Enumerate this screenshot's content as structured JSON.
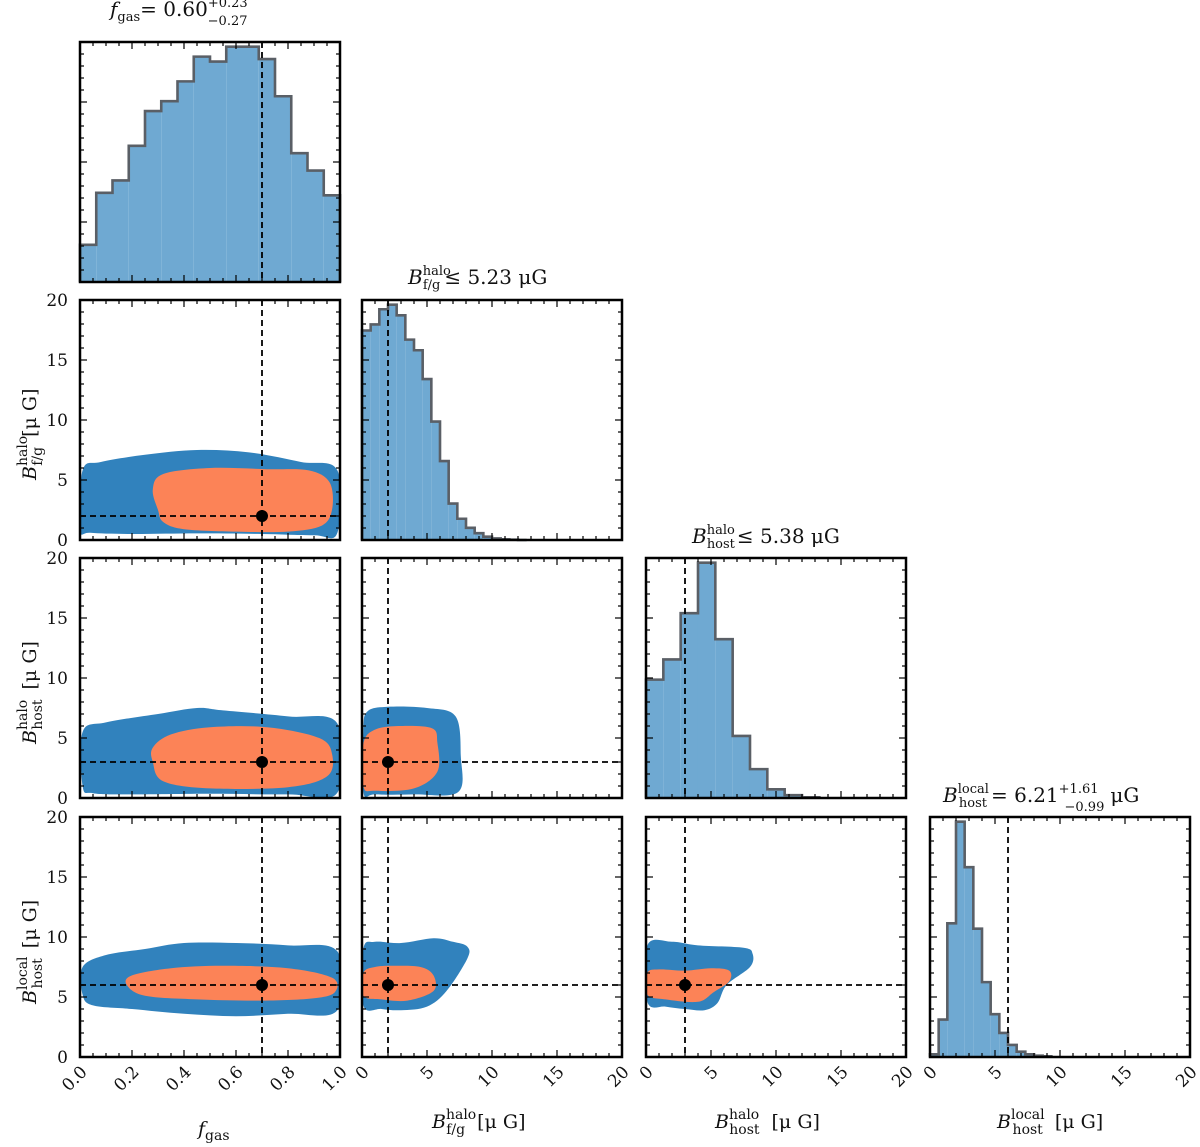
{
  "colors": {
    "hist_fill": "#6fa9d2",
    "hist_edge": "#5a5f66",
    "outer_contour": "#3182bd",
    "inner_contour": "#fc8357",
    "truth_marker": "#000000",
    "frame": "#000000"
  },
  "titles": {
    "fgas": {
      "symbol": "f",
      "sub": "gas",
      "text": "= 0.60",
      "plus": "+0.23",
      "minus": "−0.27"
    },
    "bfg": {
      "symbol": "B",
      "sup": "halo",
      "sub": "f/g",
      "text": "≤ 5.23 μG"
    },
    "bhosthalo": {
      "symbol": "B",
      "sup": "halo",
      "sub": "host",
      "text": "≤ 5.38 μG"
    },
    "bhostlocal": {
      "symbol": "B",
      "sup": "local",
      "sub": "host",
      "text": "= 6.21",
      "plus": "+1.61",
      "minus": "−0.99",
      "unit": "μG"
    }
  },
  "axis_labels": {
    "fgas": {
      "symbol": "f",
      "sub": "gas"
    },
    "bfg": {
      "symbol": "B",
      "sup": "halo",
      "sub": "f/g",
      "unit": "[μ G]"
    },
    "bhosthalo": {
      "symbol": "B",
      "sup": "halo",
      "sub": "host",
      "unit": "[μ G]"
    },
    "bhostlocal": {
      "symbol": "B",
      "sup": "local",
      "sub": "host",
      "unit": "[μ G]"
    }
  },
  "chart_data": {
    "type": "corner",
    "parameters": [
      "fgas",
      "bfg",
      "bhosthalo",
      "bhostlocal"
    ],
    "ranges": {
      "fgas": [
        0,
        1
      ],
      "bfg": [
        0,
        20
      ],
      "bhosthalo": [
        0,
        20
      ],
      "bhostlocal": [
        0,
        20
      ]
    },
    "ticks": {
      "fgas": [
        "0.0",
        "0.2",
        "0.4",
        "0.6",
        "0.8",
        "1.0"
      ],
      "bfield": [
        "0",
        "5",
        "10",
        "15",
        "20"
      ]
    },
    "truth_values": {
      "fgas": 0.7,
      "bfg": 2.0,
      "bhosthalo": 3.0,
      "bhostlocal": 6.0
    },
    "histograms": {
      "fgas": {
        "bins": 16,
        "counts": [
          0.15,
          0.36,
          0.41,
          0.55,
          0.69,
          0.73,
          0.81,
          0.91,
          0.89,
          0.95,
          0.95,
          0.9,
          0.75,
          0.52,
          0.45,
          0.35
        ]
      },
      "bfg": {
        "bin_width": 0.6667,
        "counts": [
          13.8,
          14.2,
          15.2,
          15.5,
          14.8,
          13.2,
          12.5,
          10.6,
          7.8,
          5.2,
          2.4,
          1.4,
          0.8,
          0.45,
          0.22,
          0.1,
          0.05,
          0.02,
          0.0
        ]
      },
      "bhosthalo": {
        "bin_width": 1.3333,
        "counts": [
          8.2,
          9.6,
          12.8,
          16.3,
          11.0,
          4.3,
          2.0,
          0.6,
          0.2,
          0.05
        ]
      },
      "bhostlocal": {
        "bin_width": 0.6667,
        "counts": [
          0.2,
          2.8,
          10.0,
          17.6,
          14.2,
          9.6,
          5.6,
          3.2,
          1.8,
          0.9,
          0.4,
          0.2,
          0.1,
          0.05
        ]
      }
    },
    "contours": {
      "bfg_vs_fgas": {
        "outer": [
          [
            0.0,
            0.9
          ],
          [
            0.04,
            0.6
          ],
          [
            0.2,
            0.5
          ],
          [
            0.45,
            0.55
          ],
          [
            0.7,
            0.5
          ],
          [
            0.9,
            0.4
          ],
          [
            0.99,
            0.6
          ],
          [
            0.99,
            5.8
          ],
          [
            0.85,
            6.5
          ],
          [
            0.65,
            7.3
          ],
          [
            0.45,
            7.5
          ],
          [
            0.25,
            7.1
          ],
          [
            0.08,
            6.5
          ],
          [
            0.01,
            5.8
          ]
        ],
        "inner": [
          [
            0.3,
            2.5
          ],
          [
            0.32,
            1.5
          ],
          [
            0.4,
            0.9
          ],
          [
            0.6,
            0.7
          ],
          [
            0.8,
            0.7
          ],
          [
            0.93,
            1.2
          ],
          [
            0.97,
            2.6
          ],
          [
            0.96,
            4.8
          ],
          [
            0.88,
            5.8
          ],
          [
            0.72,
            5.9
          ],
          [
            0.5,
            6.0
          ],
          [
            0.32,
            5.5
          ],
          [
            0.28,
            4.2
          ]
        ],
        "truth_line_x": 0.7,
        "truth_line_y": 2.0
      },
      "bhosthalo_vs_fgas": {
        "outer": [
          [
            0.01,
            1.0
          ],
          [
            0.05,
            0.4
          ],
          [
            0.2,
            0.3
          ],
          [
            0.5,
            0.35
          ],
          [
            0.8,
            0.3
          ],
          [
            0.99,
            0.45
          ],
          [
            0.99,
            6.2
          ],
          [
            0.8,
            6.8
          ],
          [
            0.55,
            7.3
          ],
          [
            0.45,
            7.5
          ],
          [
            0.3,
            7.0
          ],
          [
            0.1,
            6.3
          ],
          [
            0.01,
            5.5
          ]
        ],
        "inner": [
          [
            0.28,
            3.0
          ],
          [
            0.32,
            1.4
          ],
          [
            0.5,
            0.8
          ],
          [
            0.8,
            0.9
          ],
          [
            0.95,
            1.8
          ],
          [
            0.97,
            3.6
          ],
          [
            0.92,
            5.0
          ],
          [
            0.72,
            5.9
          ],
          [
            0.5,
            5.9
          ],
          [
            0.35,
            5.3
          ],
          [
            0.28,
            4.2
          ]
        ],
        "truth_line_x": 0.7,
        "truth_line_y": 3.0
      },
      "bhosthalo_vs_bfg": {
        "outer": [
          [
            0.1,
            0.5
          ],
          [
            1.0,
            0.3
          ],
          [
            4.0,
            0.3
          ],
          [
            7.4,
            0.5
          ],
          [
            7.6,
            3.5
          ],
          [
            7.2,
            6.8
          ],
          [
            5.0,
            7.5
          ],
          [
            2.0,
            7.6
          ],
          [
            0.4,
            7.2
          ],
          [
            0.1,
            5.5
          ]
        ],
        "inner": [
          [
            0.1,
            1.0
          ],
          [
            1.0,
            0.6
          ],
          [
            4.0,
            0.8
          ],
          [
            5.8,
            2.2
          ],
          [
            5.8,
            4.6
          ],
          [
            5.4,
            5.8
          ],
          [
            3.0,
            6.0
          ],
          [
            1.0,
            5.7
          ],
          [
            0.1,
            4.5
          ]
        ],
        "truth_line_x": 2.0,
        "truth_line_y": 3.0
      },
      "bhostlocal_vs_fgas": {
        "outer": [
          [
            0.01,
            5.2
          ],
          [
            0.05,
            4.3
          ],
          [
            0.2,
            4.0
          ],
          [
            0.4,
            3.6
          ],
          [
            0.6,
            3.4
          ],
          [
            0.8,
            3.6
          ],
          [
            0.99,
            3.9
          ],
          [
            0.99,
            8.8
          ],
          [
            0.8,
            9.3
          ],
          [
            0.6,
            9.5
          ],
          [
            0.4,
            9.5
          ],
          [
            0.25,
            9.0
          ],
          [
            0.1,
            8.5
          ],
          [
            0.01,
            7.5
          ]
        ],
        "inner": [
          [
            0.18,
            6.0
          ],
          [
            0.25,
            5.1
          ],
          [
            0.45,
            4.8
          ],
          [
            0.7,
            4.7
          ],
          [
            0.9,
            4.9
          ],
          [
            0.98,
            5.4
          ],
          [
            0.97,
            6.6
          ],
          [
            0.8,
            7.4
          ],
          [
            0.55,
            7.6
          ],
          [
            0.35,
            7.4
          ],
          [
            0.2,
            6.8
          ]
        ],
        "truth_line_x": 0.7,
        "truth_line_y": 6.0
      },
      "bhostlocal_vs_bfg": {
        "outer": [
          [
            0.1,
            4.3
          ],
          [
            1.5,
            4.0
          ],
          [
            3.0,
            3.9
          ],
          [
            5.0,
            4.2
          ],
          [
            6.5,
            5.5
          ],
          [
            8.1,
            8.2
          ],
          [
            8.1,
            9.2
          ],
          [
            7.0,
            9.6
          ],
          [
            5.5,
            9.9
          ],
          [
            3.0,
            9.5
          ],
          [
            1.0,
            9.6
          ],
          [
            0.1,
            9.0
          ]
        ],
        "inner": [
          [
            0.1,
            5.1
          ],
          [
            1.5,
            4.8
          ],
          [
            3.5,
            4.7
          ],
          [
            5.5,
            5.5
          ],
          [
            5.5,
            6.8
          ],
          [
            4.5,
            7.5
          ],
          [
            2.5,
            7.6
          ],
          [
            1.0,
            7.5
          ],
          [
            0.1,
            7.0
          ]
        ],
        "truth_line_x": 2.0,
        "truth_line_y": 6.0
      },
      "bhostlocal_vs_bhosthalo": {
        "outer": [
          [
            0.1,
            4.6
          ],
          [
            1.5,
            4.2
          ],
          [
            3.0,
            4.0
          ],
          [
            4.5,
            3.9
          ],
          [
            5.5,
            4.5
          ],
          [
            6.2,
            6.0
          ],
          [
            8.0,
            7.5
          ],
          [
            8.2,
            8.6
          ],
          [
            7.5,
            9.1
          ],
          [
            4.0,
            9.3
          ],
          [
            2.0,
            9.6
          ],
          [
            0.1,
            9.3
          ]
        ],
        "inner": [
          [
            0.1,
            5.2
          ],
          [
            1.5,
            4.8
          ],
          [
            4.0,
            4.6
          ],
          [
            5.2,
            5.4
          ],
          [
            6.4,
            6.3
          ],
          [
            6.4,
            7.2
          ],
          [
            5.0,
            7.4
          ],
          [
            3.0,
            7.2
          ],
          [
            1.0,
            7.3
          ],
          [
            0.1,
            7.0
          ]
        ],
        "truth_line_x": 3.0,
        "truth_line_y": 6.0
      }
    }
  }
}
